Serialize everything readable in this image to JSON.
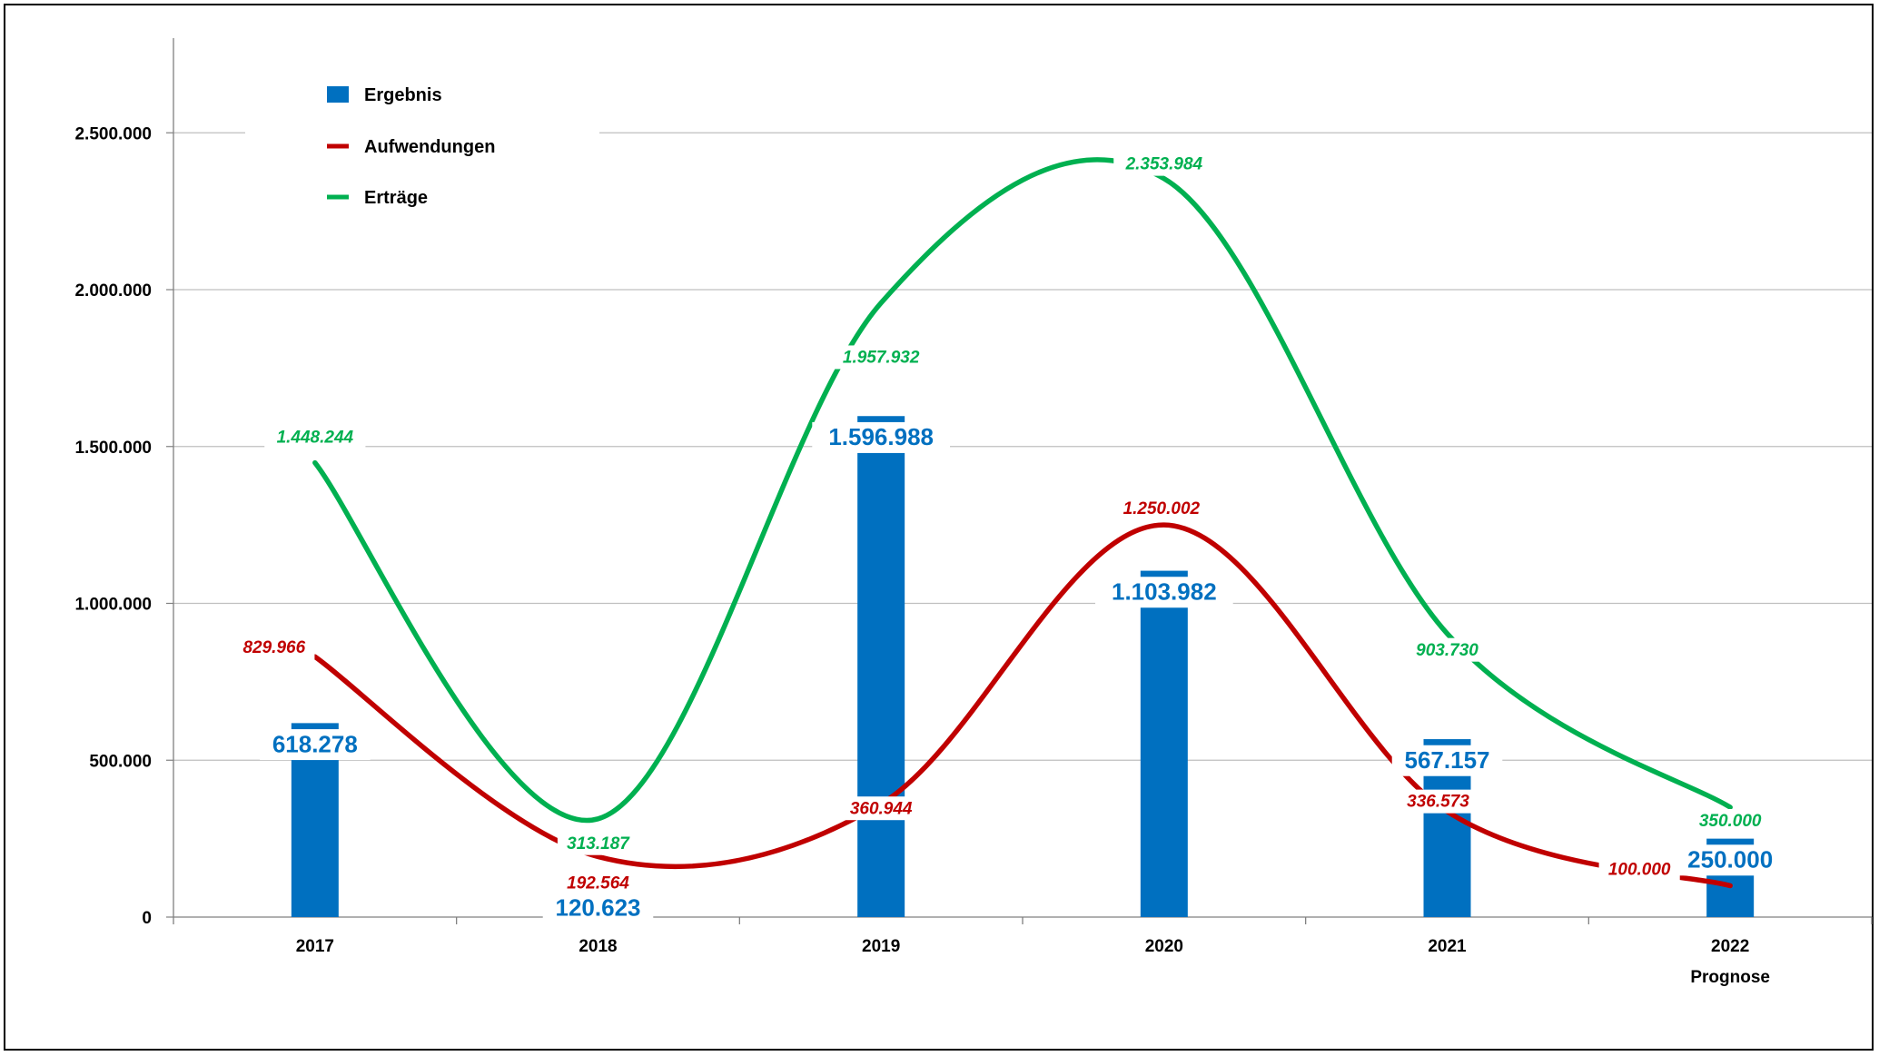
{
  "chart_data": {
    "type": "bar",
    "categories": [
      {
        "year": "2017",
        "note": ""
      },
      {
        "year": "2018",
        "note": ""
      },
      {
        "year": "2019",
        "note": ""
      },
      {
        "year": "2020",
        "note": ""
      },
      {
        "year": "2021",
        "note": ""
      },
      {
        "year": "2022",
        "note": "Prognose"
      }
    ],
    "ylim": [
      0,
      2750000
    ],
    "y_ticks": [
      {
        "value": 0,
        "label": "0"
      },
      {
        "value": 500000,
        "label": "500.000"
      },
      {
        "value": 1000000,
        "label": "1.000.000"
      },
      {
        "value": 1500000,
        "label": "1.500.000"
      },
      {
        "value": 2000000,
        "label": "2.000.000"
      },
      {
        "value": 2500000,
        "label": "2.500.000"
      }
    ],
    "grid": true,
    "legend_position": "top-left",
    "series": [
      {
        "name": "Ergebnis",
        "type": "bar",
        "color": "#0070c0",
        "values": [
          618278,
          120623,
          1596988,
          1103982,
          567157,
          250000
        ],
        "labels": [
          "618.278",
          "120.623",
          "1.596.988",
          "1.103.982",
          "567.157",
          "250.000"
        ]
      },
      {
        "name": "Aufwendungen",
        "type": "line",
        "color": "#c00000",
        "values": [
          829966,
          192564,
          360944,
          1250002,
          336573,
          100000
        ],
        "labels": [
          "829.966",
          "192.564",
          "360.944",
          "1.250.002",
          "336.573",
          "100.000"
        ]
      },
      {
        "name": "Erträge",
        "type": "line",
        "color": "#00b050",
        "values": [
          1448244,
          313187,
          1957932,
          2353984,
          903730,
          350000
        ],
        "labels": [
          "1.448.244",
          "313.187",
          "1.957.932",
          "2.353.984",
          "903.730",
          "350.000"
        ]
      }
    ]
  }
}
